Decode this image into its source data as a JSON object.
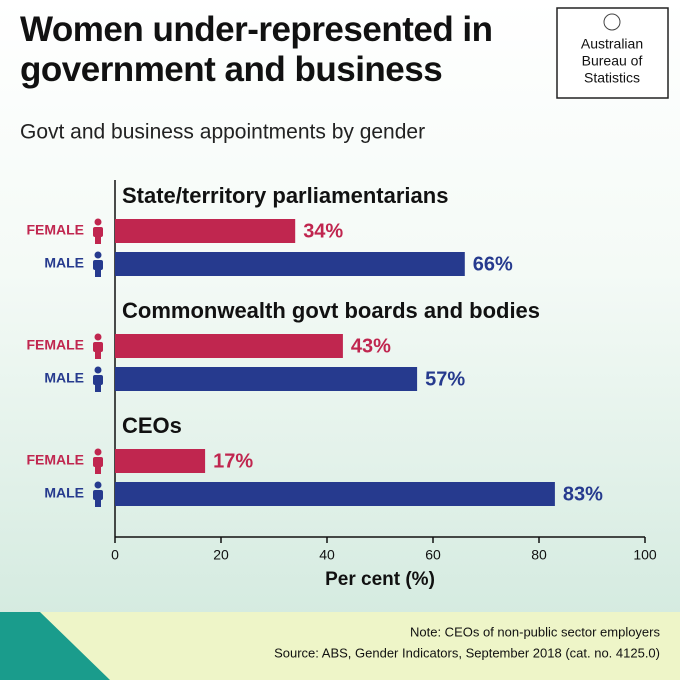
{
  "chart_data": {
    "type": "bar",
    "orientation": "horizontal",
    "title": "Women under-represented in government and business",
    "subtitle": "Govt and business appointments by gender",
    "xlabel": "Per cent (%)",
    "categories": [
      "State/territory parliamentarians",
      "Commonwealth govt boards and bodies",
      "CEOs"
    ],
    "series": [
      {
        "name": "FEMALE",
        "color": "#c0264f",
        "values": [
          34,
          43,
          17
        ],
        "value_labels": [
          "34%",
          "43%",
          "17%"
        ]
      },
      {
        "name": "MALE",
        "color": "#263a8e",
        "values": [
          66,
          57,
          83
        ],
        "value_labels": [
          "66%",
          "57%",
          "83%"
        ]
      }
    ],
    "xlim": [
      0,
      100
    ],
    "xticks": [
      0,
      20,
      40,
      60,
      80,
      100
    ]
  },
  "logo": [
    "Australian",
    "Bureau of",
    "Statistics"
  ],
  "note": "Note: CEOs of non-public sector employers",
  "source": "Source: ABS, Gender Indicators, September 2018 (cat. no. 4125.0)"
}
